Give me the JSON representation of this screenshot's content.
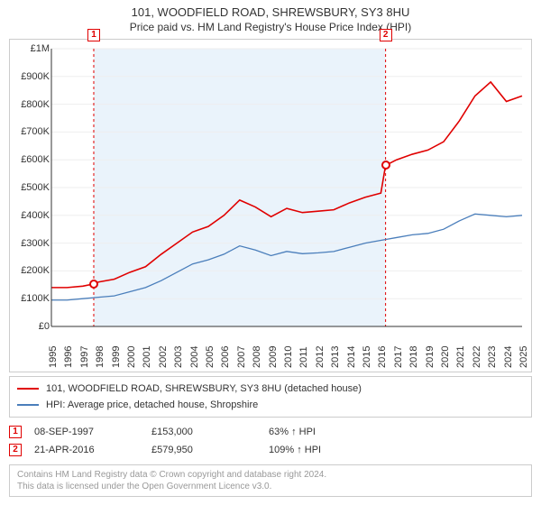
{
  "title": "101, WOODFIELD ROAD, SHREWSBURY, SY3 8HU",
  "subtitle": "Price paid vs. HM Land Registry's House Price Index (HPI)",
  "chart": {
    "type": "line",
    "background_color": "#ffffff",
    "grid_color": "#eeeeee",
    "shade_color": "#eaf3fb",
    "y": {
      "min": 0,
      "max": 1000000,
      "step": 100000,
      "labels": [
        "£0",
        "£100K",
        "£200K",
        "£300K",
        "£400K",
        "£500K",
        "£600K",
        "£700K",
        "£800K",
        "£900K",
        "£1M"
      ]
    },
    "x": {
      "min": 1995,
      "max": 2025,
      "labels": [
        "1995",
        "1996",
        "1997",
        "1998",
        "1999",
        "2000",
        "2001",
        "2002",
        "2003",
        "2004",
        "2005",
        "2006",
        "2007",
        "2008",
        "2009",
        "2010",
        "2011",
        "2012",
        "2013",
        "2014",
        "2015",
        "2016",
        "2017",
        "2018",
        "2019",
        "2020",
        "2021",
        "2022",
        "2023",
        "2024",
        "2025"
      ]
    },
    "series": [
      {
        "name": "prop",
        "color": "#e00000",
        "width": 1.6,
        "points": [
          [
            1995,
            140000
          ],
          [
            1996,
            140000
          ],
          [
            1997,
            145000
          ],
          [
            1997.7,
            153000
          ],
          [
            1998,
            160000
          ],
          [
            1999,
            170000
          ],
          [
            2000,
            195000
          ],
          [
            2001,
            215000
          ],
          [
            2002,
            260000
          ],
          [
            2003,
            300000
          ],
          [
            2004,
            340000
          ],
          [
            2005,
            360000
          ],
          [
            2006,
            400000
          ],
          [
            2007,
            455000
          ],
          [
            2008,
            430000
          ],
          [
            2009,
            395000
          ],
          [
            2010,
            425000
          ],
          [
            2011,
            410000
          ],
          [
            2012,
            415000
          ],
          [
            2013,
            420000
          ],
          [
            2014,
            445000
          ],
          [
            2015,
            465000
          ],
          [
            2016,
            480000
          ],
          [
            2016.3,
            579950
          ],
          [
            2017,
            600000
          ],
          [
            2018,
            620000
          ],
          [
            2019,
            635000
          ],
          [
            2020,
            665000
          ],
          [
            2021,
            740000
          ],
          [
            2022,
            830000
          ],
          [
            2023,
            880000
          ],
          [
            2024,
            810000
          ],
          [
            2025,
            830000
          ]
        ]
      },
      {
        "name": "hpi",
        "color": "#4a7ebb",
        "width": 1.3,
        "points": [
          [
            1995,
            95000
          ],
          [
            1996,
            95000
          ],
          [
            1997,
            100000
          ],
          [
            1998,
            105000
          ],
          [
            1999,
            110000
          ],
          [
            2000,
            125000
          ],
          [
            2001,
            140000
          ],
          [
            2002,
            165000
          ],
          [
            2003,
            195000
          ],
          [
            2004,
            225000
          ],
          [
            2005,
            240000
          ],
          [
            2006,
            260000
          ],
          [
            2007,
            290000
          ],
          [
            2008,
            275000
          ],
          [
            2009,
            255000
          ],
          [
            2010,
            270000
          ],
          [
            2011,
            262000
          ],
          [
            2012,
            265000
          ],
          [
            2013,
            270000
          ],
          [
            2014,
            285000
          ],
          [
            2015,
            300000
          ],
          [
            2016,
            310000
          ],
          [
            2017,
            320000
          ],
          [
            2018,
            330000
          ],
          [
            2019,
            335000
          ],
          [
            2020,
            350000
          ],
          [
            2021,
            380000
          ],
          [
            2022,
            405000
          ],
          [
            2023,
            400000
          ],
          [
            2024,
            395000
          ],
          [
            2025,
            400000
          ]
        ]
      }
    ],
    "markers": [
      {
        "id": "1",
        "x": 1997.7,
        "y": 153000
      },
      {
        "id": "2",
        "x": 2016.3,
        "y": 579950
      }
    ],
    "shade_ranges": [
      [
        1997.7,
        2016.3
      ]
    ]
  },
  "legend": {
    "items": [
      {
        "color": "#e00000",
        "label": "101, WOODFIELD ROAD, SHREWSBURY, SY3 8HU (detached house)"
      },
      {
        "color": "#4a7ebb",
        "label": "HPI: Average price, detached house, Shropshire"
      }
    ]
  },
  "events": [
    {
      "id": "1",
      "date": "08-SEP-1997",
      "price": "£153,000",
      "pct": "63% ↑ HPI"
    },
    {
      "id": "2",
      "date": "21-APR-2016",
      "price": "£579,950",
      "pct": "109% ↑ HPI"
    }
  ],
  "license": {
    "line1": "Contains HM Land Registry data © Crown copyright and database right 2024.",
    "line2": "This data is licensed under the Open Government Licence v3.0."
  }
}
